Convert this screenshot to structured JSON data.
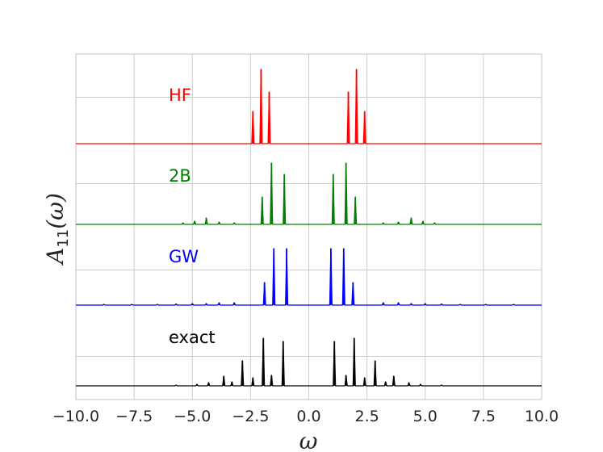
{
  "chart_data": {
    "type": "line",
    "xlabel": "ω",
    "ylabel": "A11(ω)",
    "ylabel_parts": {
      "main": "A",
      "sub": "11",
      "arg": "(ω)"
    },
    "xlim": [
      -10.0,
      10.0
    ],
    "x_ticks": [
      -10.0,
      -7.5,
      -5.0,
      -2.5,
      0.0,
      2.5,
      5.0,
      7.5,
      10.0
    ],
    "x_tick_labels": [
      "−10.0",
      "−7.5",
      "−5.0",
      "−2.5",
      "0.0",
      "2.5",
      "5.0",
      "7.5",
      "10.0"
    ],
    "grid": true,
    "y_ticks_shown": false,
    "series": [
      {
        "name": "HF",
        "color": "#ff0000",
        "offset": 3,
        "peaks": [
          {
            "x": -2.4,
            "h": 0.4
          },
          {
            "x": -2.05,
            "h": 0.92
          },
          {
            "x": -1.7,
            "h": 0.64
          },
          {
            "x": 1.7,
            "h": 0.64
          },
          {
            "x": 2.05,
            "h": 0.92
          },
          {
            "x": 2.4,
            "h": 0.4
          }
        ]
      },
      {
        "name": "2B",
        "color": "#008000",
        "offset": 2,
        "peaks": [
          {
            "x": -5.4,
            "h": 0.02
          },
          {
            "x": -4.9,
            "h": 0.04
          },
          {
            "x": -4.4,
            "h": 0.08
          },
          {
            "x": -3.85,
            "h": 0.03
          },
          {
            "x": -3.2,
            "h": 0.02
          },
          {
            "x": -2.0,
            "h": 0.34
          },
          {
            "x": -1.6,
            "h": 0.76
          },
          {
            "x": -1.05,
            "h": 0.62
          },
          {
            "x": 1.05,
            "h": 0.62
          },
          {
            "x": 1.6,
            "h": 0.76
          },
          {
            "x": 2.0,
            "h": 0.34
          },
          {
            "x": 3.2,
            "h": 0.02
          },
          {
            "x": 3.85,
            "h": 0.03
          },
          {
            "x": 4.4,
            "h": 0.08
          },
          {
            "x": 4.9,
            "h": 0.04
          },
          {
            "x": 5.4,
            "h": 0.02
          }
        ]
      },
      {
        "name": "GW",
        "color": "#0000ff",
        "offset": 1,
        "peaks": [
          {
            "x": -8.8,
            "h": 0.01
          },
          {
            "x": -7.6,
            "h": 0.01
          },
          {
            "x": -6.5,
            "h": 0.01
          },
          {
            "x": -5.7,
            "h": 0.015
          },
          {
            "x": -5.0,
            "h": 0.02
          },
          {
            "x": -4.4,
            "h": 0.02
          },
          {
            "x": -3.85,
            "h": 0.03
          },
          {
            "x": -3.2,
            "h": 0.03
          },
          {
            "x": -1.9,
            "h": 0.28
          },
          {
            "x": -1.5,
            "h": 0.7
          },
          {
            "x": -0.95,
            "h": 0.7
          },
          {
            "x": 0.95,
            "h": 0.7
          },
          {
            "x": 1.5,
            "h": 0.7
          },
          {
            "x": 1.9,
            "h": 0.28
          },
          {
            "x": 3.2,
            "h": 0.03
          },
          {
            "x": 3.85,
            "h": 0.03
          },
          {
            "x": 4.4,
            "h": 0.02
          },
          {
            "x": 5.0,
            "h": 0.02
          },
          {
            "x": 5.7,
            "h": 0.015
          },
          {
            "x": 6.5,
            "h": 0.01
          },
          {
            "x": 7.6,
            "h": 0.01
          },
          {
            "x": 8.8,
            "h": 0.01
          }
        ]
      },
      {
        "name": "exact",
        "color": "#000000",
        "offset": 0,
        "peaks": [
          {
            "x": -5.7,
            "h": 0.01
          },
          {
            "x": -4.8,
            "h": 0.02
          },
          {
            "x": -4.3,
            "h": 0.04
          },
          {
            "x": -3.65,
            "h": 0.12
          },
          {
            "x": -3.3,
            "h": 0.05
          },
          {
            "x": -2.85,
            "h": 0.31
          },
          {
            "x": -2.4,
            "h": 0.1
          },
          {
            "x": -1.95,
            "h": 0.59
          },
          {
            "x": -1.6,
            "h": 0.13
          },
          {
            "x": -1.1,
            "h": 0.55
          },
          {
            "x": 1.1,
            "h": 0.55
          },
          {
            "x": 1.6,
            "h": 0.13
          },
          {
            "x": 1.95,
            "h": 0.59
          },
          {
            "x": 2.4,
            "h": 0.1
          },
          {
            "x": 2.85,
            "h": 0.31
          },
          {
            "x": 3.3,
            "h": 0.05
          },
          {
            "x": 3.65,
            "h": 0.12
          },
          {
            "x": 4.3,
            "h": 0.04
          },
          {
            "x": 4.8,
            "h": 0.02
          },
          {
            "x": 5.7,
            "h": 0.01
          }
        ]
      }
    ]
  }
}
